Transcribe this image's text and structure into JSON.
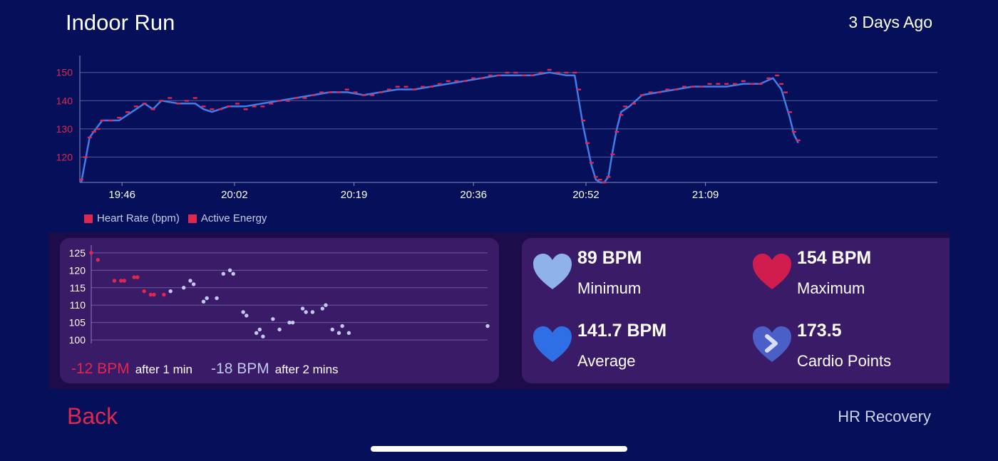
{
  "header": {
    "title": "Indoor Run",
    "date": "3 Days Ago"
  },
  "colors": {
    "background": "#050f5a",
    "heart_rate_red": "#e0274f",
    "line_blue": "#3f7ee8",
    "card": "#3a1b67"
  },
  "chart_data": [
    {
      "type": "line",
      "title": "",
      "xlabel": "",
      "ylabel": "",
      "y_ticks": [
        120,
        130,
        140,
        150
      ],
      "ylim": [
        111,
        156
      ],
      "x_ticks": [
        "19:46",
        "20:02",
        "20:19",
        "20:36",
        "20:52",
        "21:09"
      ],
      "x_minutes_range": [
        19.6667,
        21.7
      ],
      "grid": true,
      "legend_position": "bottom-left",
      "series": [
        {
          "name": "Heart Rate (bpm)",
          "color": "#e0274f",
          "style": "points",
          "points": [
            [
              19.67,
              112
            ],
            [
              19.68,
              120
            ],
            [
              19.69,
              127
            ],
            [
              19.7,
              129
            ],
            [
              19.71,
              130
            ],
            [
              19.72,
              133
            ],
            [
              19.74,
              133
            ],
            [
              19.76,
              134
            ],
            [
              19.78,
              136
            ],
            [
              19.8,
              138
            ],
            [
              19.82,
              139
            ],
            [
              19.84,
              137
            ],
            [
              19.86,
              140
            ],
            [
              19.88,
              141
            ],
            [
              19.9,
              139
            ],
            [
              19.92,
              140
            ],
            [
              19.94,
              141
            ],
            [
              19.96,
              138
            ],
            [
              19.98,
              137
            ],
            [
              20.0,
              137
            ],
            [
              20.02,
              138
            ],
            [
              20.04,
              139
            ],
            [
              20.06,
              137
            ],
            [
              20.08,
              138
            ],
            [
              20.1,
              138
            ],
            [
              20.12,
              139
            ],
            [
              20.14,
              140
            ],
            [
              20.16,
              140
            ],
            [
              20.18,
              141
            ],
            [
              20.2,
              141
            ],
            [
              20.22,
              142
            ],
            [
              20.24,
              143
            ],
            [
              20.26,
              143
            ],
            [
              20.28,
              143
            ],
            [
              20.3,
              144
            ],
            [
              20.32,
              143
            ],
            [
              20.34,
              142
            ],
            [
              20.36,
              142
            ],
            [
              20.38,
              143
            ],
            [
              20.4,
              144
            ],
            [
              20.42,
              145
            ],
            [
              20.44,
              145
            ],
            [
              20.46,
              144
            ],
            [
              20.48,
              145
            ],
            [
              20.5,
              145
            ],
            [
              20.52,
              146
            ],
            [
              20.54,
              147
            ],
            [
              20.56,
              147
            ],
            [
              20.58,
              147
            ],
            [
              20.6,
              148
            ],
            [
              20.62,
              148
            ],
            [
              20.64,
              149
            ],
            [
              20.66,
              149
            ],
            [
              20.68,
              150
            ],
            [
              20.7,
              150
            ],
            [
              20.72,
              149
            ],
            [
              20.74,
              149
            ],
            [
              20.76,
              150
            ],
            [
              20.78,
              151
            ],
            [
              20.8,
              150
            ],
            [
              20.82,
              150
            ],
            [
              20.84,
              150
            ],
            [
              20.85,
              144
            ],
            [
              20.86,
              133
            ],
            [
              20.87,
              125
            ],
            [
              20.88,
              118
            ],
            [
              20.89,
              113
            ],
            [
              20.9,
              112
            ],
            [
              20.91,
              111
            ],
            [
              20.92,
              113
            ],
            [
              20.93,
              121
            ],
            [
              20.94,
              129
            ],
            [
              20.95,
              135
            ],
            [
              20.96,
              138
            ],
            [
              20.98,
              139
            ],
            [
              21.0,
              142
            ],
            [
              21.02,
              143
            ],
            [
              21.04,
              143
            ],
            [
              21.06,
              144
            ],
            [
              21.08,
              144
            ],
            [
              21.1,
              145
            ],
            [
              21.12,
              145
            ],
            [
              21.14,
              145
            ],
            [
              21.16,
              146
            ],
            [
              21.18,
              146
            ],
            [
              21.2,
              146
            ],
            [
              21.22,
              146
            ],
            [
              21.24,
              147
            ],
            [
              21.26,
              146
            ],
            [
              21.28,
              146
            ],
            [
              21.3,
              148
            ],
            [
              21.32,
              149
            ],
            [
              21.33,
              146
            ],
            [
              21.34,
              143
            ],
            [
              21.35,
              136
            ],
            [
              21.36,
              129
            ],
            [
              21.37,
              126
            ]
          ]
        },
        {
          "name": "Active Energy",
          "color": "#3f7ee8",
          "style": "line",
          "points": [
            [
              19.67,
              111
            ],
            [
              19.68,
              119
            ],
            [
              19.69,
              127
            ],
            [
              19.7,
              129
            ],
            [
              19.72,
              133
            ],
            [
              19.76,
              133
            ],
            [
              19.8,
              137
            ],
            [
              19.82,
              139
            ],
            [
              19.84,
              137
            ],
            [
              19.86,
              140
            ],
            [
              19.9,
              139
            ],
            [
              19.94,
              139
            ],
            [
              19.96,
              137
            ],
            [
              19.98,
              136
            ],
            [
              20.02,
              138
            ],
            [
              20.06,
              138
            ],
            [
              20.1,
              139
            ],
            [
              20.14,
              140
            ],
            [
              20.18,
              141
            ],
            [
              20.22,
              142
            ],
            [
              20.26,
              143
            ],
            [
              20.3,
              143
            ],
            [
              20.34,
              142
            ],
            [
              20.38,
              143
            ],
            [
              20.42,
              144
            ],
            [
              20.46,
              144
            ],
            [
              20.5,
              145
            ],
            [
              20.54,
              146
            ],
            [
              20.58,
              147
            ],
            [
              20.62,
              148
            ],
            [
              20.66,
              149
            ],
            [
              20.7,
              149
            ],
            [
              20.74,
              149
            ],
            [
              20.78,
              150
            ],
            [
              20.82,
              149
            ],
            [
              20.84,
              149
            ],
            [
              20.85,
              140
            ],
            [
              20.86,
              131
            ],
            [
              20.87,
              124
            ],
            [
              20.88,
              117
            ],
            [
              20.89,
              112
            ],
            [
              20.9,
              110
            ],
            [
              20.91,
              110
            ],
            [
              20.92,
              113
            ],
            [
              20.93,
              122
            ],
            [
              20.94,
              130
            ],
            [
              20.95,
              136
            ],
            [
              20.97,
              138
            ],
            [
              21.0,
              142
            ],
            [
              21.04,
              143
            ],
            [
              21.08,
              144
            ],
            [
              21.12,
              145
            ],
            [
              21.16,
              145
            ],
            [
              21.2,
              145
            ],
            [
              21.24,
              146
            ],
            [
              21.28,
              146
            ],
            [
              21.31,
              148
            ],
            [
              21.33,
              144
            ],
            [
              21.35,
              134
            ],
            [
              21.36,
              128
            ],
            [
              21.37,
              125
            ]
          ]
        }
      ]
    },
    {
      "type": "scatter",
      "title": "",
      "y_ticks": [
        100,
        105,
        110,
        115,
        120,
        125
      ],
      "ylim": [
        99,
        126
      ],
      "xlim": [
        0,
        120
      ],
      "grid": true,
      "series": [
        {
          "name": "",
          "color": "#e0274f",
          "points": [
            [
              0,
              125
            ],
            [
              2,
              123
            ],
            [
              7,
              117
            ],
            [
              9,
              117
            ],
            [
              10,
              117
            ],
            [
              13,
              118
            ],
            [
              14,
              118
            ],
            [
              16,
              114
            ],
            [
              18,
              113
            ],
            [
              19,
              113
            ],
            [
              22,
              113
            ]
          ]
        },
        {
          "name": "",
          "color": "#c3c8ee",
          "points": [
            [
              24,
              114
            ],
            [
              28,
              115
            ],
            [
              30,
              117
            ],
            [
              31,
              116
            ],
            [
              34,
              111
            ],
            [
              35,
              112
            ],
            [
              38,
              112
            ],
            [
              40,
              119
            ],
            [
              42,
              120
            ],
            [
              43,
              119
            ],
            [
              46,
              108
            ],
            [
              47,
              107
            ],
            [
              50,
              102
            ],
            [
              51,
              103
            ],
            [
              52,
              101
            ],
            [
              55,
              106
            ],
            [
              57,
              103
            ],
            [
              60,
              105
            ],
            [
              61,
              105
            ],
            [
              64,
              109
            ],
            [
              65,
              108
            ],
            [
              67,
              108
            ],
            [
              70,
              109
            ],
            [
              71,
              110
            ],
            [
              73,
              103
            ],
            [
              75,
              102
            ],
            [
              76,
              104
            ],
            [
              78,
              102
            ],
            [
              120,
              104
            ]
          ]
        }
      ]
    }
  ],
  "recovery": {
    "drop_1": "-12 BPM",
    "after_1": "after 1 min",
    "drop_2": "-18 BPM",
    "after_2": "after 2 mins"
  },
  "stats": {
    "min_value": "89 BPM",
    "min_label": "Minimum",
    "max_value": "154 BPM",
    "max_label": "Maximum",
    "avg_value": "141.7 BPM",
    "avg_label": "Average",
    "cardio_value": "173.5",
    "cardio_label": "Cardio Points"
  },
  "footer": {
    "back": "Back",
    "hr_recovery": "HR Recovery"
  }
}
